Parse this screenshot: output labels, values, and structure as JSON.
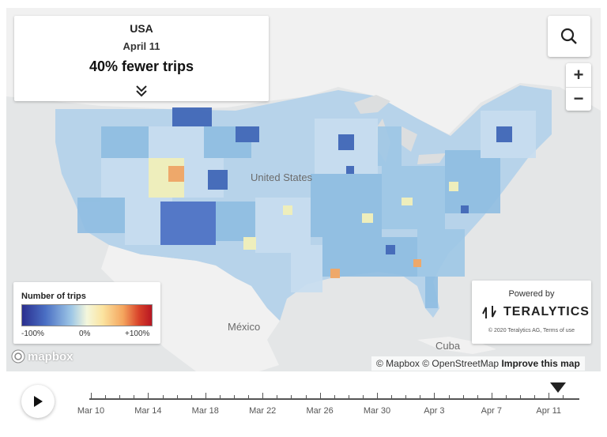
{
  "info_card": {
    "country": "USA",
    "date": "April 11",
    "metric": "40% fewer trips",
    "expand_icon": "double-chevron-down-icon"
  },
  "controls": {
    "search_icon": "search-icon",
    "zoom_in": "+",
    "zoom_out": "−"
  },
  "map": {
    "labels": {
      "usa": "United States",
      "mexico": "México",
      "cuba": "Cuba"
    },
    "colors": {
      "land": "#f1f1f1",
      "water": "#dcdedf",
      "choropleth_light": "#c8def0",
      "choropleth_mid": "#8fbde2",
      "choropleth_dark": "#3b63b5",
      "choropleth_yellow": "#f5f1b8"
    }
  },
  "legend": {
    "title": "Number of trips",
    "ticks": [
      "-100%",
      "0%",
      "+100%"
    ],
    "colors": [
      "#2b2f8f",
      "#4a6fc4",
      "#9ec7e6",
      "#f4f7dc",
      "#fbe4a0",
      "#f4a45d",
      "#d8432a",
      "#b81622"
    ]
  },
  "powered": {
    "label": "Powered by",
    "brand": "TERALYTICS",
    "copyright": "© 2020 Teralytics AG, Terms of use"
  },
  "attribution": {
    "mapbox": "© Mapbox",
    "osm": "© OpenStreetMap",
    "improve": "Improve this map"
  },
  "mapbox_logo": "mapbox",
  "timeline": {
    "play_icon": "play-icon",
    "labels": [
      "Mar 10",
      "Mar 14",
      "Mar 18",
      "Mar 22",
      "Mar 26",
      "Mar 30",
      "Apr 3",
      "Apr 7",
      "Apr 11"
    ],
    "current": "Apr 11"
  }
}
